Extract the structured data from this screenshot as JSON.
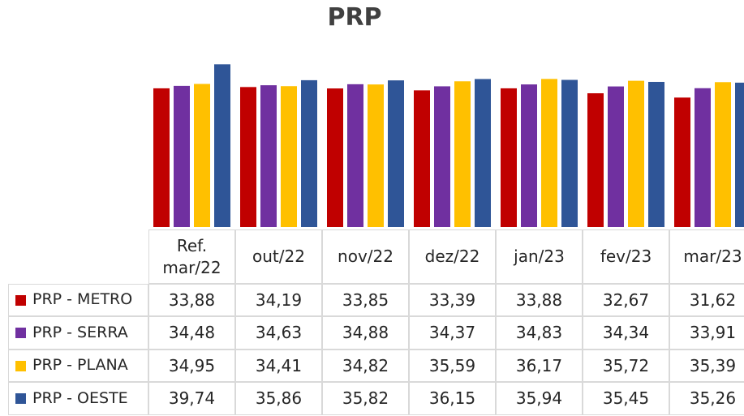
{
  "chart_data": {
    "type": "bar",
    "title": "PRP",
    "categories": [
      "Ref. mar/22",
      "out/22",
      "nov/22",
      "dez/22",
      "jan/23",
      "fev/23",
      "mar/23"
    ],
    "ylim": [
      0,
      40
    ],
    "series": [
      {
        "name": "PRP - METRO",
        "color": "#c00000",
        "values": [
          33.88,
          34.19,
          33.85,
          33.39,
          33.88,
          32.67,
          31.62
        ],
        "value_labels": [
          "33,88",
          "34,19",
          "33,85",
          "33,39",
          "33,88",
          "32,67",
          "31,62"
        ]
      },
      {
        "name": "PRP - SERRA",
        "color": "#7030a0",
        "values": [
          34.48,
          34.63,
          34.88,
          34.37,
          34.83,
          34.34,
          33.91
        ],
        "value_labels": [
          "34,48",
          "34,63",
          "34,88",
          "34,37",
          "34,83",
          "34,34",
          "33,91"
        ]
      },
      {
        "name": "PRP - PLANA",
        "color": "#ffc000",
        "values": [
          34.95,
          34.41,
          34.82,
          35.59,
          36.17,
          35.72,
          35.39
        ],
        "value_labels": [
          "34,95",
          "34,41",
          "34,82",
          "35,59",
          "36,17",
          "35,72",
          "35,39"
        ]
      },
      {
        "name": "PRP - OESTE",
        "color": "#2f5597",
        "values": [
          39.74,
          35.86,
          35.82,
          36.15,
          35.94,
          35.45,
          35.26
        ],
        "value_labels": [
          "39,74",
          "35,86",
          "35,82",
          "36,15",
          "35,94",
          "35,45",
          "35,26"
        ]
      }
    ]
  }
}
